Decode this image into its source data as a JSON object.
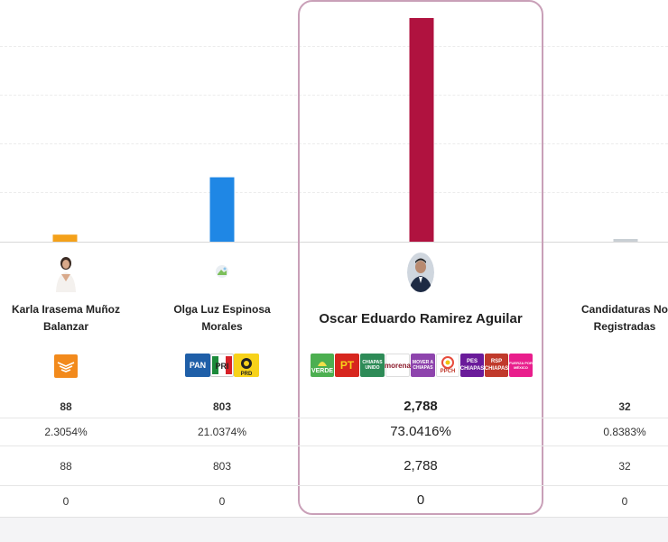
{
  "chart_data": {
    "type": "bar",
    "title": "",
    "categories": [
      "Karla Irasema Muñoz Balanzar",
      "Olga Luz Espinosa Morales",
      "Oscar Eduardo Ramirez Aguilar",
      "Candidaturas No Registradas"
    ],
    "values": [
      88,
      803,
      2788,
      32
    ],
    "colors": [
      "#f4a11a",
      "#1f87e5",
      "#b0123f",
      "#c9cfd4"
    ],
    "ylim": [
      0,
      2900
    ],
    "grid": true
  },
  "candidates": [
    {
      "name_line1": "Karla Irasema Muñoz",
      "name_line2": "Balanzar",
      "party_icon": "movimiento-ciudadano-logo",
      "votes": "88",
      "percent": "2.3054%",
      "votes_repeat": "88",
      "extra": "0"
    },
    {
      "name_line1": "Olga Luz Espinosa",
      "name_line2": "Morales",
      "party_logos": [
        "PAN",
        "PRI",
        "PRD"
      ],
      "votes": "803",
      "percent": "21.0374%",
      "votes_repeat": "803",
      "extra": "0"
    },
    {
      "name_line1": "Oscar Eduardo Ramirez Aguilar",
      "party_logos": [
        "VERDE",
        "PT",
        "CHIAPAS UNIDO",
        "morena",
        "MOVER A CHIAPAS",
        "PPCH",
        "PES CHIAPAS",
        "RSP CHIAPAS",
        "FUERZA POR MÉXICO"
      ],
      "votes": "2,788",
      "percent": "73.0416%",
      "votes_repeat": "2,788",
      "extra": "0"
    },
    {
      "name_line1": "Candidaturas No",
      "name_line2": "Registradas",
      "votes": "32",
      "percent": "0.8383%",
      "votes_repeat": "32",
      "extra": "0"
    }
  ],
  "logo_colors": {
    "mc": "#f28a1c",
    "pan": "#1f5fa8",
    "pri_green": "#1c8a3a",
    "pri_red": "#d72027",
    "prd": "#f7d21a",
    "verde": "#4caf50",
    "pt": "#d7261e",
    "chiapas_unido": "#2e8b57",
    "morena": "#8b1a2b",
    "mover": "#8e44ad",
    "ppch": "#e74c3c",
    "pes": "#6a1b9a",
    "rsp": "#c0392b",
    "fxm": "#e91e8c"
  }
}
